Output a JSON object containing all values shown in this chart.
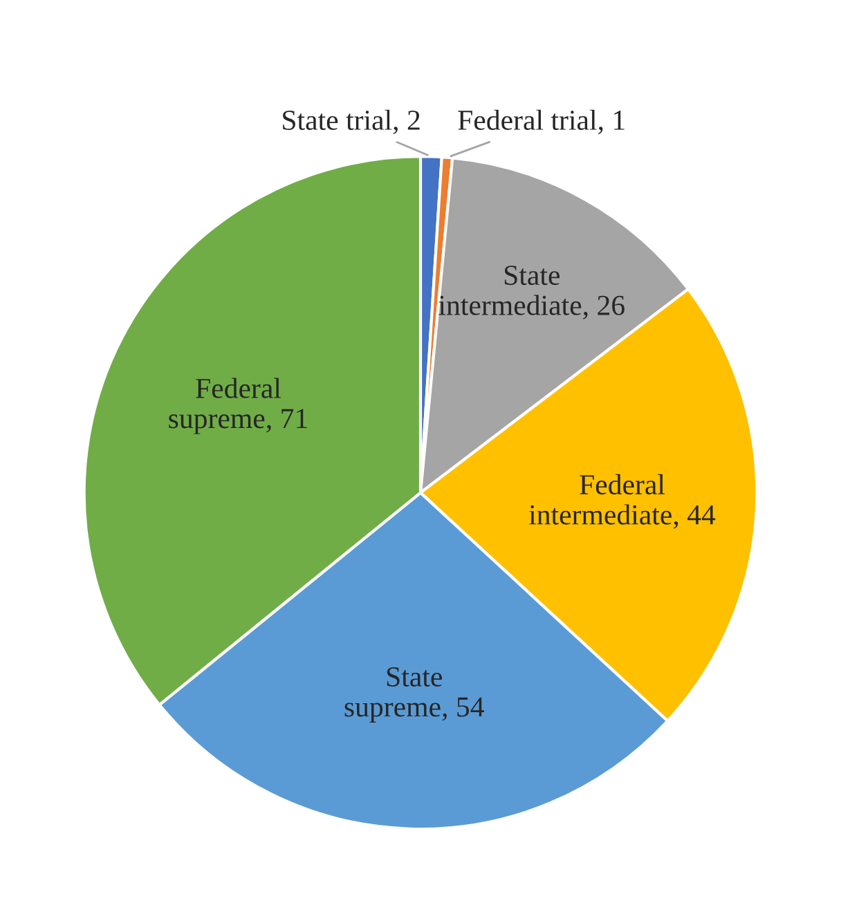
{
  "chart_data": {
    "type": "pie",
    "categories": [
      "State trial, 2",
      "Federal trial, 1",
      "State intermediate, 26",
      "Federal intermediate, 44",
      "State supreme, 54",
      "Federal supreme, 71"
    ],
    "values": [
      2,
      1,
      26,
      44,
      54,
      71
    ],
    "colors": [
      "#4472c4",
      "#ed7d31",
      "#a5a5a5",
      "#ffc000",
      "#5b9bd5",
      "#70ad47"
    ]
  }
}
